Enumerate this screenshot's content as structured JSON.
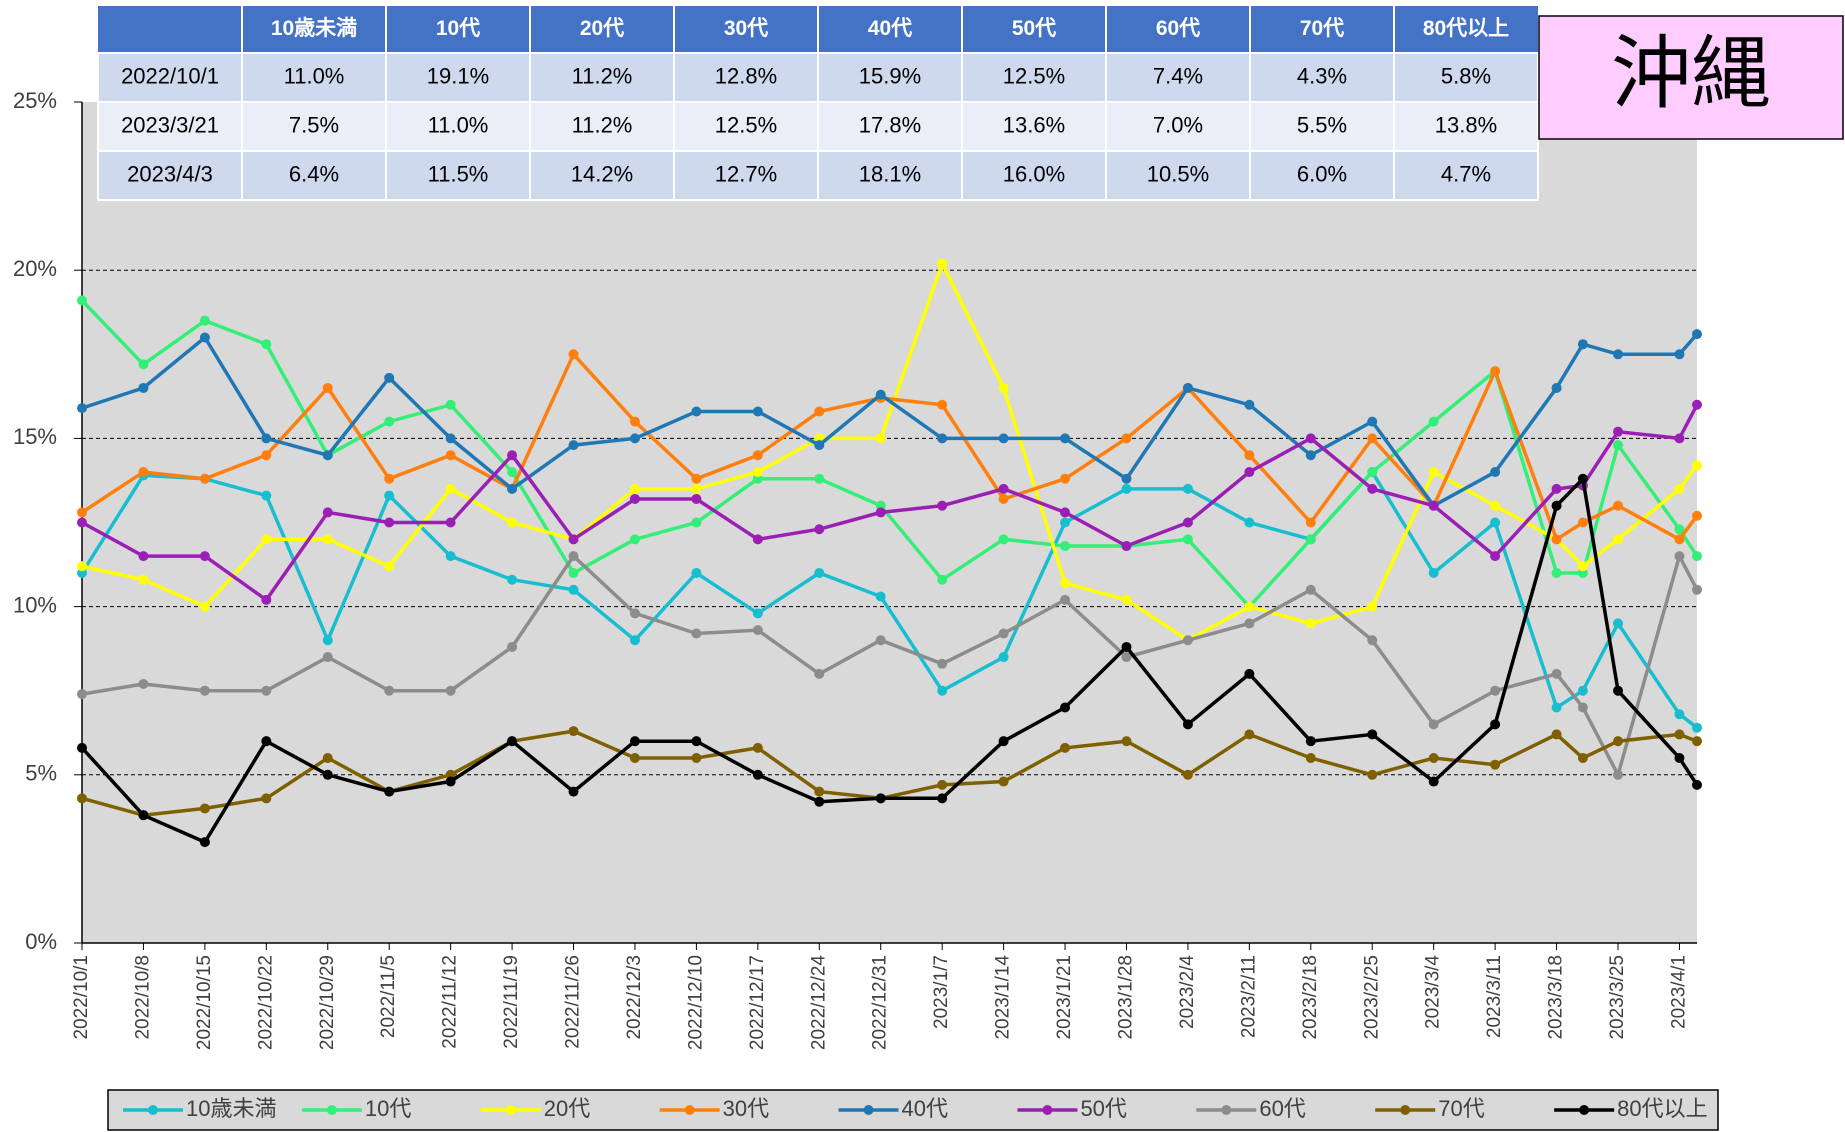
{
  "chart_data": {
    "type": "line",
    "region_label": "沖縄",
    "table": {
      "columns": [
        "10歳未満",
        "10代",
        "20代",
        "30代",
        "40代",
        "50代",
        "60代",
        "70代",
        "80代以上"
      ],
      "rows": [
        [
          "2022/10/1",
          "11.0%",
          "19.1%",
          "11.2%",
          "12.8%",
          "15.9%",
          "12.5%",
          "7.4%",
          "4.3%",
          "5.8%"
        ],
        [
          "2023/3/21",
          "7.5%",
          "11.0%",
          "11.2%",
          "12.5%",
          "17.8%",
          "13.6%",
          "7.0%",
          "5.5%",
          "13.8%"
        ],
        [
          "2023/4/3",
          "6.4%",
          "11.5%",
          "14.2%",
          "12.7%",
          "18.1%",
          "16.0%",
          "10.5%",
          "6.0%",
          "4.7%"
        ]
      ]
    },
    "x": [
      "2022/10/1",
      "2022/10/8",
      "2022/10/15",
      "2022/10/22",
      "2022/10/29",
      "2022/11/5",
      "2022/11/12",
      "2022/11/19",
      "2022/11/26",
      "2022/12/3",
      "2022/12/10",
      "2022/12/17",
      "2022/12/24",
      "2022/12/31",
      "2023/1/7",
      "2023/1/14",
      "2023/1/21",
      "2023/1/28",
      "2023/2/4",
      "2023/2/11",
      "2023/2/18",
      "2023/2/25",
      "2023/3/4",
      "2023/3/11",
      "2023/3/18",
      "2023/3/21",
      "2023/3/25",
      "2023/4/1",
      "2023/4/3"
    ],
    "xlim": [
      "2022/10/1",
      "2023/4/3"
    ],
    "xticks": [
      "2022/10/1",
      "2022/10/8",
      "2022/10/15",
      "2022/10/22",
      "2022/10/29",
      "2022/11/5",
      "2022/11/12",
      "2022/11/19",
      "2022/11/26",
      "2022/12/3",
      "2022/12/10",
      "2022/12/17",
      "2022/12/24",
      "2022/12/31",
      "2023/1/7",
      "2023/1/14",
      "2023/1/21",
      "2023/1/28",
      "2023/2/4",
      "2023/2/11",
      "2023/2/18",
      "2023/2/25",
      "2023/3/4",
      "2023/3/11",
      "2023/3/18",
      "2023/3/25",
      "2023/4/1"
    ],
    "ylim": [
      0,
      25
    ],
    "yticks": [
      {
        "value": 0,
        "label": "0%"
      },
      {
        "value": 5,
        "label": "5%"
      },
      {
        "value": 10,
        "label": "10%"
      },
      {
        "value": 15,
        "label": "15%"
      },
      {
        "value": 20,
        "label": "20%"
      },
      {
        "value": 25,
        "label": "25%"
      }
    ],
    "grid": true,
    "series": [
      {
        "name": "10歳未満",
        "color": "#17becf",
        "values": [
          11.0,
          13.9,
          13.8,
          13.3,
          9.0,
          13.3,
          11.5,
          10.8,
          10.5,
          9.0,
          11.0,
          9.8,
          11.0,
          10.3,
          7.5,
          8.5,
          12.5,
          13.5,
          13.5,
          12.5,
          12.0,
          14.0,
          11.0,
          12.5,
          7.0,
          7.5,
          9.5,
          6.8,
          6.4
        ]
      },
      {
        "name": "10代",
        "color": "#33ee77",
        "values": [
          19.1,
          17.2,
          18.5,
          17.8,
          14.5,
          15.5,
          16.0,
          14.0,
          11.0,
          12.0,
          12.5,
          13.8,
          13.8,
          13.0,
          10.8,
          12.0,
          11.8,
          11.8,
          12.0,
          10.0,
          12.0,
          14.0,
          15.5,
          17.0,
          11.0,
          11.0,
          14.8,
          12.3,
          11.5
        ]
      },
      {
        "name": "20代",
        "color": "#ffff00",
        "values": [
          11.2,
          10.8,
          10.0,
          12.0,
          12.0,
          11.2,
          13.5,
          12.5,
          12.0,
          13.5,
          13.5,
          14.0,
          15.0,
          15.0,
          20.2,
          16.5,
          10.7,
          10.2,
          9.0,
          10.0,
          9.5,
          10.0,
          14.0,
          13.0,
          12.0,
          11.2,
          12.0,
          13.5,
          14.2
        ]
      },
      {
        "name": "30代",
        "color": "#ff7f0e",
        "values": [
          12.8,
          14.0,
          13.8,
          14.5,
          16.5,
          13.8,
          14.5,
          13.5,
          17.5,
          15.5,
          13.8,
          14.5,
          15.8,
          16.2,
          16.0,
          13.2,
          13.8,
          15.0,
          16.5,
          14.5,
          12.5,
          15.0,
          13.0,
          17.0,
          12.0,
          12.5,
          13.0,
          12.0,
          12.7
        ]
      },
      {
        "name": "40代",
        "color": "#1f77b4",
        "values": [
          15.9,
          16.5,
          18.0,
          15.0,
          14.5,
          16.8,
          15.0,
          13.5,
          14.8,
          15.0,
          15.8,
          15.8,
          14.8,
          16.3,
          15.0,
          15.0,
          15.0,
          13.8,
          16.5,
          16.0,
          14.5,
          15.5,
          13.0,
          14.0,
          16.5,
          17.8,
          17.5,
          17.5,
          18.1
        ]
      },
      {
        "name": "50代",
        "color": "#9b1fb4",
        "values": [
          12.5,
          11.5,
          11.5,
          10.2,
          12.8,
          12.5,
          12.5,
          14.5,
          12.0,
          13.2,
          13.2,
          12.0,
          12.3,
          12.8,
          13.0,
          13.5,
          12.8,
          11.8,
          12.5,
          14.0,
          15.0,
          13.5,
          13.0,
          11.5,
          13.5,
          13.6,
          15.2,
          15.0,
          16.0
        ]
      },
      {
        "name": "60代",
        "color": "#8c8c8c",
        "values": [
          7.4,
          7.7,
          7.5,
          7.5,
          8.5,
          7.5,
          7.5,
          8.8,
          11.5,
          9.8,
          9.2,
          9.3,
          8.0,
          9.0,
          8.3,
          9.2,
          10.2,
          8.5,
          9.0,
          9.5,
          10.5,
          9.0,
          6.5,
          7.5,
          8.0,
          7.0,
          5.0,
          11.5,
          10.5
        ]
      },
      {
        "name": "70代",
        "color": "#7f6000",
        "values": [
          4.3,
          3.8,
          4.0,
          4.3,
          5.5,
          4.5,
          5.0,
          6.0,
          6.3,
          5.5,
          5.5,
          5.8,
          4.5,
          4.3,
          4.7,
          4.8,
          5.8,
          6.0,
          5.0,
          6.2,
          5.5,
          5.0,
          5.5,
          5.3,
          6.2,
          5.5,
          6.0,
          6.2,
          6.0
        ]
      },
      {
        "name": "80代以上",
        "color": "#000000",
        "values": [
          5.8,
          3.8,
          3.0,
          6.0,
          5.0,
          4.5,
          4.8,
          6.0,
          4.5,
          6.0,
          6.0,
          5.0,
          4.2,
          4.3,
          4.3,
          6.0,
          7.0,
          8.8,
          6.5,
          8.0,
          6.0,
          6.2,
          4.8,
          6.5,
          13.0,
          13.8,
          7.5,
          5.5,
          4.7
        ]
      }
    ]
  }
}
